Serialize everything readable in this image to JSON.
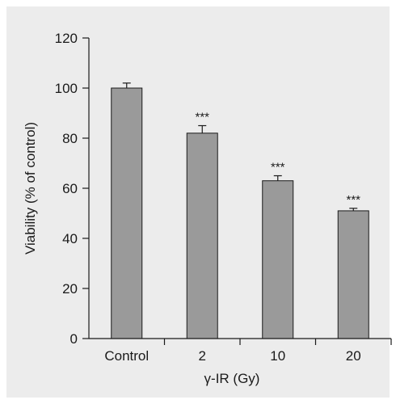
{
  "chart_data": {
    "type": "bar",
    "categories": [
      "Control",
      "2",
      "10",
      "20"
    ],
    "values": [
      100,
      82,
      63,
      51
    ],
    "errors": [
      2,
      3,
      2,
      1
    ],
    "significance": [
      "",
      "***",
      "***",
      "***"
    ],
    "xlabel": "γ-IR (Gy)",
    "ylabel": "Viability (% of control)",
    "ylim": [
      0,
      120
    ],
    "yticks": [
      0,
      20,
      40,
      60,
      80,
      100,
      120
    ],
    "grid": false,
    "colors": {
      "panel": "#ececec",
      "bar_fill": "#9a9a9a",
      "bar_stroke": "#1a1a1a",
      "axis": "#1a1a1a"
    }
  }
}
